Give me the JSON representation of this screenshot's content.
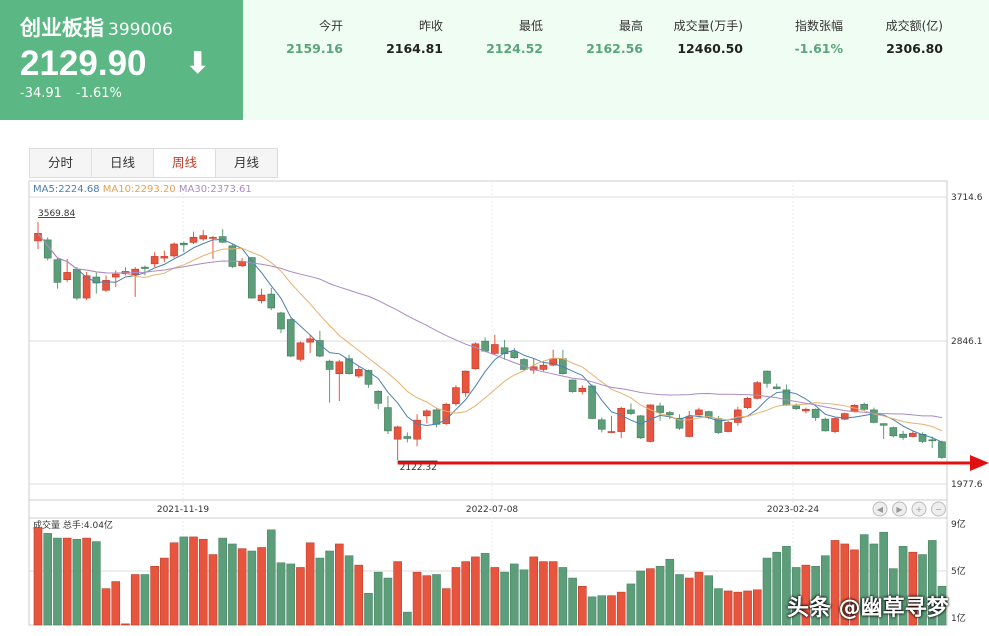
{
  "quote": {
    "name": "创业板指",
    "code": "399006",
    "price": "2129.90",
    "arrow_icon": "down-arrow-icon",
    "change": "-34.91",
    "change_pct": "-1.61%",
    "bg_color": "#5bb784"
  },
  "stats": [
    {
      "label": "今开",
      "value": "2159.16",
      "color": "#5aa57a"
    },
    {
      "label": "昨收",
      "value": "2164.81",
      "color": "#222222"
    },
    {
      "label": "最低",
      "value": "2124.52",
      "color": "#5aa57a"
    },
    {
      "label": "最高",
      "value": "2162.56",
      "color": "#5aa57a"
    },
    {
      "label": "成交量(万手)",
      "value": "12460.50",
      "color": "#222222"
    },
    {
      "label": "指数张幅",
      "value": "-1.61%",
      "color": "#5aa57a"
    },
    {
      "label": "成交额(亿)",
      "value": "2306.80",
      "color": "#222222"
    }
  ],
  "tabs": [
    {
      "label": "分时"
    },
    {
      "label": "日线"
    },
    {
      "label": "周线",
      "active": true
    },
    {
      "label": "月线"
    }
  ],
  "ma_legend": {
    "ma5": "MA5:2224.68",
    "ma10": "MA10:2293.20",
    "ma30": "MA30:2373.61"
  },
  "colors": {
    "up": "#e8553e",
    "down": "#5c9e7a",
    "ma5": "#4a7fae",
    "ma10": "#e8b070",
    "ma30": "#a98bc4",
    "annotation": "#e01010"
  },
  "watermark": "头条 @幽草寻梦",
  "chart_data": {
    "type": "candlestick",
    "period": "weekly",
    "y_ticks": [
      "3714.6",
      "2846.1",
      "1977.6"
    ],
    "ylim": [
      1977.6,
      3714.6
    ],
    "x_ticks": [
      "2021-11-19",
      "2022-07-08",
      "2023-02-24"
    ],
    "high_label": "3569.84",
    "low_label": "2122.32",
    "ohlc_fields": [
      "open",
      "close",
      "high",
      "low"
    ],
    "candles": [
      [
        3449,
        3495,
        3565,
        3400
      ],
      [
        3455,
        3345,
        3470,
        3330
      ],
      [
        3335,
        3198,
        3345,
        3160
      ],
      [
        3214,
        3258,
        3340,
        3200
      ],
      [
        3278,
        3103,
        3290,
        3090
      ],
      [
        3103,
        3238,
        3260,
        3090
      ],
      [
        3230,
        3194,
        3260,
        3130
      ],
      [
        3150,
        3210,
        3240,
        3140
      ],
      [
        3230,
        3248,
        3270,
        3170
      ],
      [
        3250,
        3264,
        3290,
        3240
      ],
      [
        3244,
        3278,
        3290,
        3110
      ],
      [
        3290,
        3282,
        3300,
        3240
      ],
      [
        3310,
        3355,
        3380,
        3290
      ],
      [
        3345,
        3355,
        3390,
        3320
      ],
      [
        3358,
        3430,
        3440,
        3345
      ],
      [
        3435,
        3425,
        3445,
        3380
      ],
      [
        3440,
        3471,
        3505,
        3430
      ],
      [
        3461,
        3481,
        3515,
        3450
      ],
      [
        3464,
        3470,
        3480,
        3340
      ],
      [
        3475,
        3441,
        3520,
        3435
      ],
      [
        3419,
        3294,
        3430,
        3285
      ],
      [
        3298,
        3324,
        3345,
        3290
      ],
      [
        3348,
        3103,
        3350,
        3100
      ],
      [
        3087,
        3121,
        3160,
        3070
      ],
      [
        3127,
        3043,
        3165,
        3030
      ],
      [
        3013,
        2916,
        3020,
        2890
      ],
      [
        2973,
        2752,
        2980,
        2745
      ],
      [
        2732,
        2832,
        2840,
        2720
      ],
      [
        2836,
        2856,
        2880,
        2770
      ],
      [
        2846,
        2752,
        2905,
        2745
      ],
      [
        2721,
        2671,
        2730,
        2470
      ],
      [
        2645,
        2717,
        2730,
        2480
      ],
      [
        2736,
        2645,
        2760,
        2640
      ],
      [
        2631,
        2671,
        2690,
        2620
      ],
      [
        2665,
        2581,
        2670,
        2560
      ],
      [
        2539,
        2466,
        2545,
        2430
      ],
      [
        2440,
        2299,
        2510,
        2280
      ],
      [
        2249,
        2323,
        2330,
        2122
      ],
      [
        2265,
        2253,
        2290,
        2230
      ],
      [
        2249,
        2364,
        2400,
        2205
      ],
      [
        2390,
        2420,
        2430,
        2345
      ],
      [
        2426,
        2339,
        2440,
        2320
      ],
      [
        2343,
        2460,
        2470,
        2335
      ],
      [
        2464,
        2561,
        2575,
        2450
      ],
      [
        2530,
        2661,
        2665,
        2505
      ],
      [
        2675,
        2826,
        2835,
        2670
      ],
      [
        2842,
        2782,
        2865,
        2775
      ],
      [
        2768,
        2822,
        2880,
        2760
      ],
      [
        2802,
        2766,
        2850,
        2730
      ],
      [
        2778,
        2742,
        2800,
        2735
      ],
      [
        2731,
        2671,
        2740,
        2665
      ],
      [
        2667,
        2687,
        2740,
        2645
      ],
      [
        2671,
        2697,
        2720,
        2660
      ],
      [
        2697,
        2736,
        2790,
        2690
      ],
      [
        2736,
        2645,
        2790,
        2640
      ],
      [
        2607,
        2537,
        2610,
        2530
      ],
      [
        2537,
        2557,
        2575,
        2520
      ],
      [
        2571,
        2374,
        2580,
        2370
      ],
      [
        2366,
        2309,
        2380,
        2290
      ],
      [
        2289,
        2295,
        2390,
        2285
      ],
      [
        2295,
        2436,
        2445,
        2255
      ],
      [
        2426,
        2404,
        2465,
        2395
      ],
      [
        2390,
        2257,
        2395,
        2250
      ],
      [
        2235,
        2456,
        2460,
        2230
      ],
      [
        2450,
        2410,
        2470,
        2360
      ],
      [
        2410,
        2396,
        2420,
        2370
      ],
      [
        2376,
        2315,
        2400,
        2305
      ],
      [
        2265,
        2384,
        2420,
        2260
      ],
      [
        2396,
        2426,
        2440,
        2390
      ],
      [
        2416,
        2380,
        2420,
        2370
      ],
      [
        2374,
        2289,
        2390,
        2280
      ],
      [
        2295,
        2350,
        2360,
        2290
      ],
      [
        2350,
        2426,
        2445,
        2330
      ],
      [
        2440,
        2496,
        2505,
        2430
      ],
      [
        2496,
        2591,
        2600,
        2490
      ],
      [
        2661,
        2587,
        2665,
        2560
      ],
      [
        2565,
        2555,
        2585,
        2550
      ],
      [
        2547,
        2454,
        2580,
        2450
      ],
      [
        2450,
        2434,
        2465,
        2425
      ],
      [
        2420,
        2430,
        2440,
        2405
      ],
      [
        2430,
        2380,
        2435,
        2360
      ],
      [
        2370,
        2299,
        2380,
        2295
      ],
      [
        2295,
        2374,
        2380,
        2285
      ],
      [
        2370,
        2404,
        2410,
        2365
      ],
      [
        2416,
        2454,
        2460,
        2410
      ],
      [
        2460,
        2430,
        2470,
        2420
      ],
      [
        2426,
        2350,
        2440,
        2345
      ],
      [
        2343,
        2333,
        2345,
        2250
      ],
      [
        2319,
        2269,
        2325,
        2260
      ],
      [
        2279,
        2259,
        2300,
        2245
      ],
      [
        2265,
        2285,
        2295,
        2260
      ],
      [
        2279,
        2235,
        2290,
        2225
      ],
      [
        2245,
        2239,
        2265,
        2195
      ],
      [
        2233,
        2138,
        2240,
        2130
      ]
    ],
    "volume": {
      "label": "成交量 总手:4.04亿",
      "y_ticks": [
        "9亿",
        "5亿",
        "1亿"
      ],
      "unit": "亿",
      "values": [
        8.7,
        8.2,
        7.8,
        7.8,
        7.7,
        7.8,
        7.5,
        3.5,
        4.1,
        0.5,
        4.7,
        4.7,
        5.4,
        6.1,
        7.4,
        7.9,
        7.9,
        7.7,
        6.4,
        7.8,
        7.3,
        6.9,
        6.7,
        7.0,
        8.5,
        5.7,
        5.6,
        5.3,
        7.4,
        6.1,
        6.7,
        7.3,
        6.3,
        5.5,
        3.1,
        4.9,
        4.4,
        5.8,
        1.5,
        4.9,
        4.6,
        4.7,
        3.5,
        5.3,
        5.8,
        6.2,
        6.5,
        5.3,
        4.9,
        5.6,
        5.1,
        6.2,
        5.8,
        5.8,
        5.3,
        4.4,
        3.7,
        2.8,
        2.9,
        2.9,
        3.2,
        3.9,
        5.0,
        5.2,
        5.4,
        6.0,
        4.7,
        4.4,
        4.9,
        4.6,
        3.5,
        3.3,
        3.2,
        3.3,
        3.4,
        6.1,
        6.6,
        7.1,
        5.3,
        5.5,
        5.4,
        6.3,
        7.6,
        7.3,
        6.8,
        8.1,
        7.3,
        8.3,
        5.2,
        7.1,
        6.6,
        6.4,
        7.6,
        3.7
      ]
    },
    "nav_buttons": [
      "scroll-left-icon",
      "scroll-right-icon",
      "zoom-in-icon",
      "zoom-out-icon"
    ]
  }
}
